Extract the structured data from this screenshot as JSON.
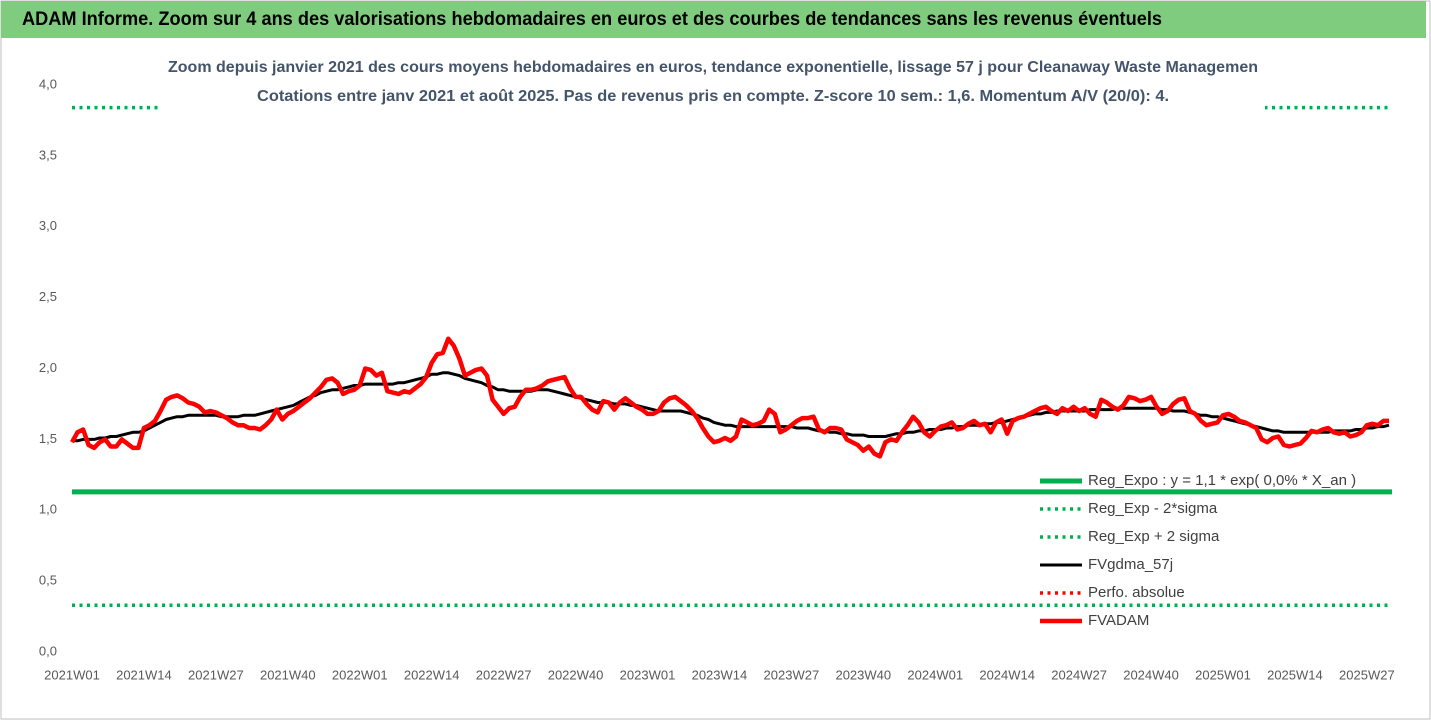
{
  "header": {
    "title": "ADAM Informe. Zoom sur 4 ans des valorisations hebdomadaires en euros et des courbes de tendances sans les revenus éventuels"
  },
  "chart_data": {
    "type": "line",
    "title": "Zoom depuis janvier 2021 des cours moyens hebdomadaires en euros, tendance exponentielle, lissage 57 j pour Cleanaway Waste Managemen",
    "subtitle": "Cotations entre janv 2021 et août 2025.  Pas de revenus pris en compte. Z-score 10 sem.: 1,6. Momentum A/V (20/0): 4.",
    "categories": [
      "2021W01",
      null,
      null,
      null,
      null,
      null,
      null,
      null,
      null,
      null,
      null,
      null,
      null,
      "2021W14",
      null,
      null,
      null,
      null,
      null,
      null,
      null,
      null,
      null,
      null,
      null,
      null,
      "2021W27",
      null,
      null,
      null,
      null,
      null,
      null,
      null,
      null,
      null,
      null,
      null,
      null,
      "2021W40",
      null,
      null,
      null,
      null,
      null,
      null,
      null,
      null,
      null,
      null,
      null,
      null,
      "2022W01",
      null,
      null,
      null,
      null,
      null,
      null,
      null,
      null,
      null,
      null,
      null,
      null,
      "2022W14",
      null,
      null,
      null,
      null,
      null,
      null,
      null,
      null,
      null,
      null,
      null,
      null,
      "2022W27",
      null,
      null,
      null,
      null,
      null,
      null,
      null,
      null,
      null,
      null,
      null,
      null,
      "2022W40",
      null,
      null,
      null,
      null,
      null,
      null,
      null,
      null,
      null,
      null,
      null,
      null,
      "2023W01",
      null,
      null,
      null,
      null,
      null,
      null,
      null,
      null,
      null,
      null,
      null,
      null,
      "2023W14",
      null,
      null,
      null,
      null,
      null,
      null,
      null,
      null,
      null,
      null,
      null,
      null,
      "2023W27",
      null,
      null,
      null,
      null,
      null,
      null,
      null,
      null,
      null,
      null,
      null,
      null,
      "2023W40",
      null,
      null,
      null,
      null,
      null,
      null,
      null,
      null,
      null,
      null,
      null,
      null,
      "2024W01",
      null,
      null,
      null,
      null,
      null,
      null,
      null,
      null,
      null,
      null,
      null,
      null,
      "2024W14",
      null,
      null,
      null,
      null,
      null,
      null,
      null,
      null,
      null,
      null,
      null,
      null,
      "2024W27",
      null,
      null,
      null,
      null,
      null,
      null,
      null,
      null,
      null,
      null,
      null,
      null,
      "2024W40",
      null,
      null,
      null,
      null,
      null,
      null,
      null,
      null,
      null,
      null,
      null,
      null,
      "2025W01",
      null,
      null,
      null,
      null,
      null,
      null,
      null,
      null,
      null,
      null,
      null,
      null,
      "2025W14",
      null,
      null,
      null,
      null,
      null,
      null,
      null,
      null,
      null,
      null,
      null,
      null,
      "2025W27",
      null,
      null,
      null,
      null
    ],
    "ylim": [
      0,
      4
    ],
    "yticks": [
      {
        "value": 0,
        "label": "0,0"
      },
      {
        "value": 0.5,
        "label": "0,5"
      },
      {
        "value": 1,
        "label": "1,0"
      },
      {
        "value": 1.5,
        "label": "1,5"
      },
      {
        "value": 2,
        "label": "2,0"
      },
      {
        "value": 2.5,
        "label": "2,5"
      },
      {
        "value": 3,
        "label": "3,0"
      },
      {
        "value": 3.5,
        "label": "3,5"
      },
      {
        "value": 4,
        "label": "4,0"
      }
    ],
    "grid": false,
    "series": [
      {
        "name": "Reg_Expo : y = 1,1 * exp( 0,0% *  X_an )",
        "color": "#00b050",
        "style": "thick",
        "value": 1.13
      },
      {
        "name": "Reg_Exp - 2*sigma",
        "color": "#00b050",
        "style": "dotted",
        "value": 0.33
      },
      {
        "name": "Reg_Exp + 2 sigma",
        "color": "#00b050",
        "style": "dotted",
        "value": 3.84
      },
      {
        "name": "FVgdma_57j",
        "color": "#000000",
        "style": "solid",
        "values": [
          1.49,
          1.49,
          1.5,
          1.5,
          1.5,
          1.51,
          1.51,
          1.52,
          1.52,
          1.53,
          1.54,
          1.55,
          1.55,
          1.56,
          1.58,
          1.6,
          1.62,
          1.64,
          1.65,
          1.66,
          1.66,
          1.67,
          1.67,
          1.67,
          1.67,
          1.67,
          1.67,
          1.66,
          1.66,
          1.66,
          1.66,
          1.67,
          1.67,
          1.67,
          1.68,
          1.69,
          1.7,
          1.71,
          1.72,
          1.73,
          1.74,
          1.76,
          1.78,
          1.8,
          1.81,
          1.83,
          1.84,
          1.85,
          1.85,
          1.86,
          1.87,
          1.88,
          1.88,
          1.89,
          1.89,
          1.89,
          1.89,
          1.89,
          1.89,
          1.9,
          1.9,
          1.91,
          1.92,
          1.93,
          1.94,
          1.96,
          1.96,
          1.97,
          1.97,
          1.96,
          1.95,
          1.93,
          1.92,
          1.91,
          1.9,
          1.88,
          1.87,
          1.85,
          1.85,
          1.84,
          1.84,
          1.84,
          1.84,
          1.84,
          1.85,
          1.85,
          1.85,
          1.84,
          1.83,
          1.82,
          1.81,
          1.8,
          1.79,
          1.78,
          1.77,
          1.76,
          1.76,
          1.76,
          1.75,
          1.75,
          1.75,
          1.74,
          1.74,
          1.73,
          1.72,
          1.71,
          1.7,
          1.7,
          1.7,
          1.7,
          1.7,
          1.69,
          1.68,
          1.67,
          1.65,
          1.64,
          1.62,
          1.61,
          1.6,
          1.6,
          1.59,
          1.59,
          1.59,
          1.59,
          1.59,
          1.59,
          1.59,
          1.59,
          1.59,
          1.59,
          1.59,
          1.58,
          1.58,
          1.58,
          1.57,
          1.56,
          1.56,
          1.55,
          1.55,
          1.54,
          1.54,
          1.53,
          1.53,
          1.53,
          1.52,
          1.52,
          1.52,
          1.52,
          1.53,
          1.54,
          1.54,
          1.55,
          1.55,
          1.56,
          1.56,
          1.57,
          1.57,
          1.57,
          1.58,
          1.58,
          1.59,
          1.59,
          1.6,
          1.6,
          1.6,
          1.61,
          1.61,
          1.62,
          1.62,
          1.63,
          1.64,
          1.65,
          1.66,
          1.67,
          1.68,
          1.68,
          1.69,
          1.69,
          1.7,
          1.7,
          1.7,
          1.7,
          1.7,
          1.7,
          1.71,
          1.71,
          1.71,
          1.71,
          1.71,
          1.72,
          1.72,
          1.72,
          1.72,
          1.72,
          1.72,
          1.72,
          1.72,
          1.71,
          1.71,
          1.7,
          1.7,
          1.7,
          1.69,
          1.68,
          1.67,
          1.67,
          1.66,
          1.66,
          1.65,
          1.64,
          1.63,
          1.62,
          1.61,
          1.6,
          1.59,
          1.58,
          1.57,
          1.56,
          1.56,
          1.55,
          1.55,
          1.55,
          1.55,
          1.55,
          1.55,
          1.55,
          1.55,
          1.55,
          1.56,
          1.56,
          1.56,
          1.56,
          1.57,
          1.57,
          1.58,
          1.58,
          1.59,
          1.59,
          1.6
        ]
      },
      {
        "name": "Perfo. absolue",
        "color": "#ff0000",
        "style": "dotted"
      },
      {
        "name": "FVADAM",
        "color": "#ff0000",
        "style": "thick",
        "values": [
          1.48,
          1.55,
          1.57,
          1.46,
          1.44,
          1.48,
          1.5,
          1.45,
          1.45,
          1.5,
          1.47,
          1.44,
          1.44,
          1.58,
          1.6,
          1.63,
          1.7,
          1.78,
          1.8,
          1.81,
          1.79,
          1.76,
          1.75,
          1.73,
          1.69,
          1.7,
          1.69,
          1.67,
          1.65,
          1.62,
          1.6,
          1.6,
          1.58,
          1.58,
          1.57,
          1.6,
          1.64,
          1.71,
          1.64,
          1.68,
          1.7,
          1.73,
          1.76,
          1.79,
          1.83,
          1.87,
          1.92,
          1.93,
          1.9,
          1.82,
          1.84,
          1.85,
          1.88,
          2.0,
          1.99,
          1.95,
          1.97,
          1.84,
          1.83,
          1.82,
          1.84,
          1.83,
          1.86,
          1.89,
          1.94,
          2.04,
          2.1,
          2.11,
          2.21,
          2.16,
          2.07,
          1.95,
          1.97,
          1.99,
          2.0,
          1.95,
          1.78,
          1.73,
          1.68,
          1.72,
          1.73,
          1.8,
          1.85,
          1.85,
          1.86,
          1.88,
          1.91,
          1.92,
          1.93,
          1.94,
          1.86,
          1.8,
          1.8,
          1.75,
          1.71,
          1.69,
          1.77,
          1.76,
          1.71,
          1.76,
          1.79,
          1.76,
          1.73,
          1.71,
          1.68,
          1.68,
          1.7,
          1.76,
          1.79,
          1.8,
          1.77,
          1.74,
          1.7,
          1.65,
          1.58,
          1.52,
          1.48,
          1.49,
          1.51,
          1.49,
          1.52,
          1.64,
          1.62,
          1.6,
          1.61,
          1.63,
          1.71,
          1.68,
          1.55,
          1.57,
          1.6,
          1.63,
          1.65,
          1.65,
          1.66,
          1.57,
          1.55,
          1.58,
          1.58,
          1.57,
          1.5,
          1.48,
          1.46,
          1.42,
          1.45,
          1.4,
          1.38,
          1.48,
          1.5,
          1.49,
          1.55,
          1.6,
          1.66,
          1.62,
          1.55,
          1.52,
          1.56,
          1.59,
          1.6,
          1.62,
          1.57,
          1.58,
          1.61,
          1.63,
          1.6,
          1.61,
          1.55,
          1.62,
          1.64,
          1.54,
          1.63,
          1.65,
          1.66,
          1.68,
          1.7,
          1.72,
          1.73,
          1.7,
          1.68,
          1.72,
          1.7,
          1.73,
          1.7,
          1.72,
          1.68,
          1.66,
          1.78,
          1.76,
          1.73,
          1.71,
          1.74,
          1.8,
          1.79,
          1.77,
          1.78,
          1.8,
          1.73,
          1.68,
          1.7,
          1.75,
          1.78,
          1.79,
          1.7,
          1.68,
          1.63,
          1.6,
          1.61,
          1.62,
          1.67,
          1.68,
          1.66,
          1.63,
          1.62,
          1.6,
          1.58,
          1.5,
          1.48,
          1.51,
          1.52,
          1.46,
          1.45,
          1.46,
          1.47,
          1.51,
          1.56,
          1.55,
          1.57,
          1.58,
          1.55,
          1.54,
          1.55,
          1.52,
          1.53,
          1.55,
          1.6,
          1.61,
          1.6,
          1.63,
          1.63
        ]
      }
    ]
  }
}
